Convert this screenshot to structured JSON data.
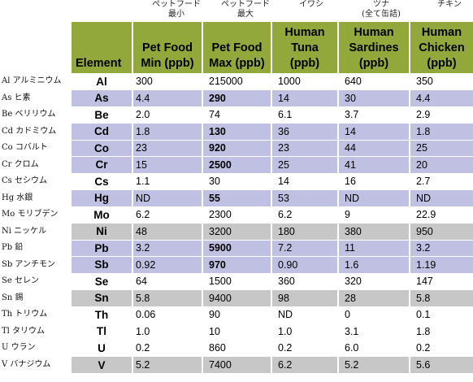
{
  "japanese_headers": [
    {
      "line1": "ペットフード",
      "line2": "最小"
    },
    {
      "line1": "ペットフード",
      "line2": "最大"
    },
    {
      "line1": "イワシ",
      "line2": ""
    },
    {
      "line1": "ツナ",
      "line2": "(全て缶詰)"
    },
    {
      "line1": "チキン",
      "line2": ""
    }
  ],
  "columns": [
    {
      "line1": "",
      "line2": "Element"
    },
    {
      "line1": "Pet Food",
      "line2": "Min (ppb)"
    },
    {
      "line1": "Pet Food",
      "line2": "Max (ppb)"
    },
    {
      "line1": "Human",
      "line2": "Tuna",
      "line3": "(ppb)"
    },
    {
      "line1": "Human",
      "line2": "Sardines",
      "line3": "(ppb)"
    },
    {
      "line1": "Human",
      "line2": "Chicken",
      "line3": "(ppb)"
    }
  ],
  "rows": [
    {
      "label": "Al アルミニウム",
      "el": "Al",
      "min": "300",
      "max": "215000",
      "tuna": "1000",
      "sardines": "640",
      "chicken": "350",
      "style": "wh",
      "bold_max": false
    },
    {
      "label": "As ヒ素",
      "el": "As",
      "min": "4.4",
      "max": "290",
      "tuna": "14",
      "sardines": "30",
      "chicken": "4.4",
      "style": "hl",
      "bold_max": true
    },
    {
      "label": "Be ベリリウム",
      "el": "Be",
      "min": "2.0",
      "max": "74",
      "tuna": "6.1",
      "sardines": "3.7",
      "chicken": "2.9",
      "style": "wh",
      "bold_max": false
    },
    {
      "label": "Cd カドミウム",
      "el": "Cd",
      "min": "1.8",
      "max": "130",
      "tuna": "36",
      "sardines": "14",
      "chicken": "1.8",
      "style": "hl",
      "bold_max": true
    },
    {
      "label": "Co コバルト",
      "el": "Co",
      "min": "23",
      "max": "920",
      "tuna": "23",
      "sardines": "44",
      "chicken": "25",
      "style": "hl",
      "bold_max": true
    },
    {
      "label": "Cr クロム",
      "el": "Cr",
      "min": "15",
      "max": "2500",
      "tuna": "25",
      "sardines": "41",
      "chicken": "20",
      "style": "hl",
      "bold_max": true
    },
    {
      "label": "Cs セシウム",
      "el": "Cs",
      "min": "1.1",
      "max": "30",
      "tuna": "14",
      "sardines": "16",
      "chicken": "2.7",
      "style": "wh",
      "bold_max": false
    },
    {
      "label": "Hg 水銀",
      "el": "Hg",
      "min": "ND",
      "max": "55",
      "tuna": "53",
      "sardines": "ND",
      "chicken": "ND",
      "style": "hl",
      "bold_max": true
    },
    {
      "label": "Mo モリブデン",
      "el": "Mo",
      "min": "6.2",
      "max": "2300",
      "tuna": "6.2",
      "sardines": "9",
      "chicken": "22.9",
      "style": "wh",
      "bold_max": false
    },
    {
      "label": "Ni ニッケル",
      "el": "Ni",
      "min": "48",
      "max": "3200",
      "tuna": "180",
      "sardines": "380",
      "chicken": "950",
      "style": "gr",
      "bold_max": false
    },
    {
      "label": "Pb 鉛",
      "el": "Pb",
      "min": "3.2",
      "max": "5900",
      "tuna": "7.2",
      "sardines": "11",
      "chicken": "3.2",
      "style": "hl",
      "bold_max": true
    },
    {
      "label": "Sb アンチモン",
      "el": "Sb",
      "min": "0.92",
      "max": "970",
      "tuna": "0.90",
      "sardines": "1.6",
      "chicken": "1.19",
      "style": "hl",
      "bold_max": true
    },
    {
      "label": "Se セレン",
      "el": "Se",
      "min": "64",
      "max": "1500",
      "tuna": "360",
      "sardines": "320",
      "chicken": "147",
      "style": "wh",
      "bold_max": false
    },
    {
      "label": "Sn 錫",
      "el": "Sn",
      "min": "5.8",
      "max": "9400",
      "tuna": "98",
      "sardines": "28",
      "chicken": "5.8",
      "style": "gr",
      "bold_max": false
    },
    {
      "label": "Th トリウム",
      "el": "Th",
      "min": "0.06",
      "max": "90",
      "tuna": "ND",
      "sardines": "0",
      "chicken": "0.1",
      "style": "wh",
      "bold_max": false
    },
    {
      "label": "Tl タリウム",
      "el": "Tl",
      "min": "1.0",
      "max": "10",
      "tuna": "1.0",
      "sardines": "3.1",
      "chicken": "1.8",
      "style": "wh",
      "bold_max": false
    },
    {
      "label": "U ウラン",
      "el": "U",
      "min": "0.2",
      "max": "860",
      "tuna": "0.2",
      "sardines": "6.0",
      "chicken": "0.2",
      "style": "wh",
      "bold_max": false
    },
    {
      "label": "V バナジウム",
      "el": "V",
      "min": "5.2",
      "max": "7400",
      "tuna": "6.2",
      "sardines": "5.2",
      "chicken": "5.6",
      "style": "gr",
      "bold_max": false
    }
  ]
}
